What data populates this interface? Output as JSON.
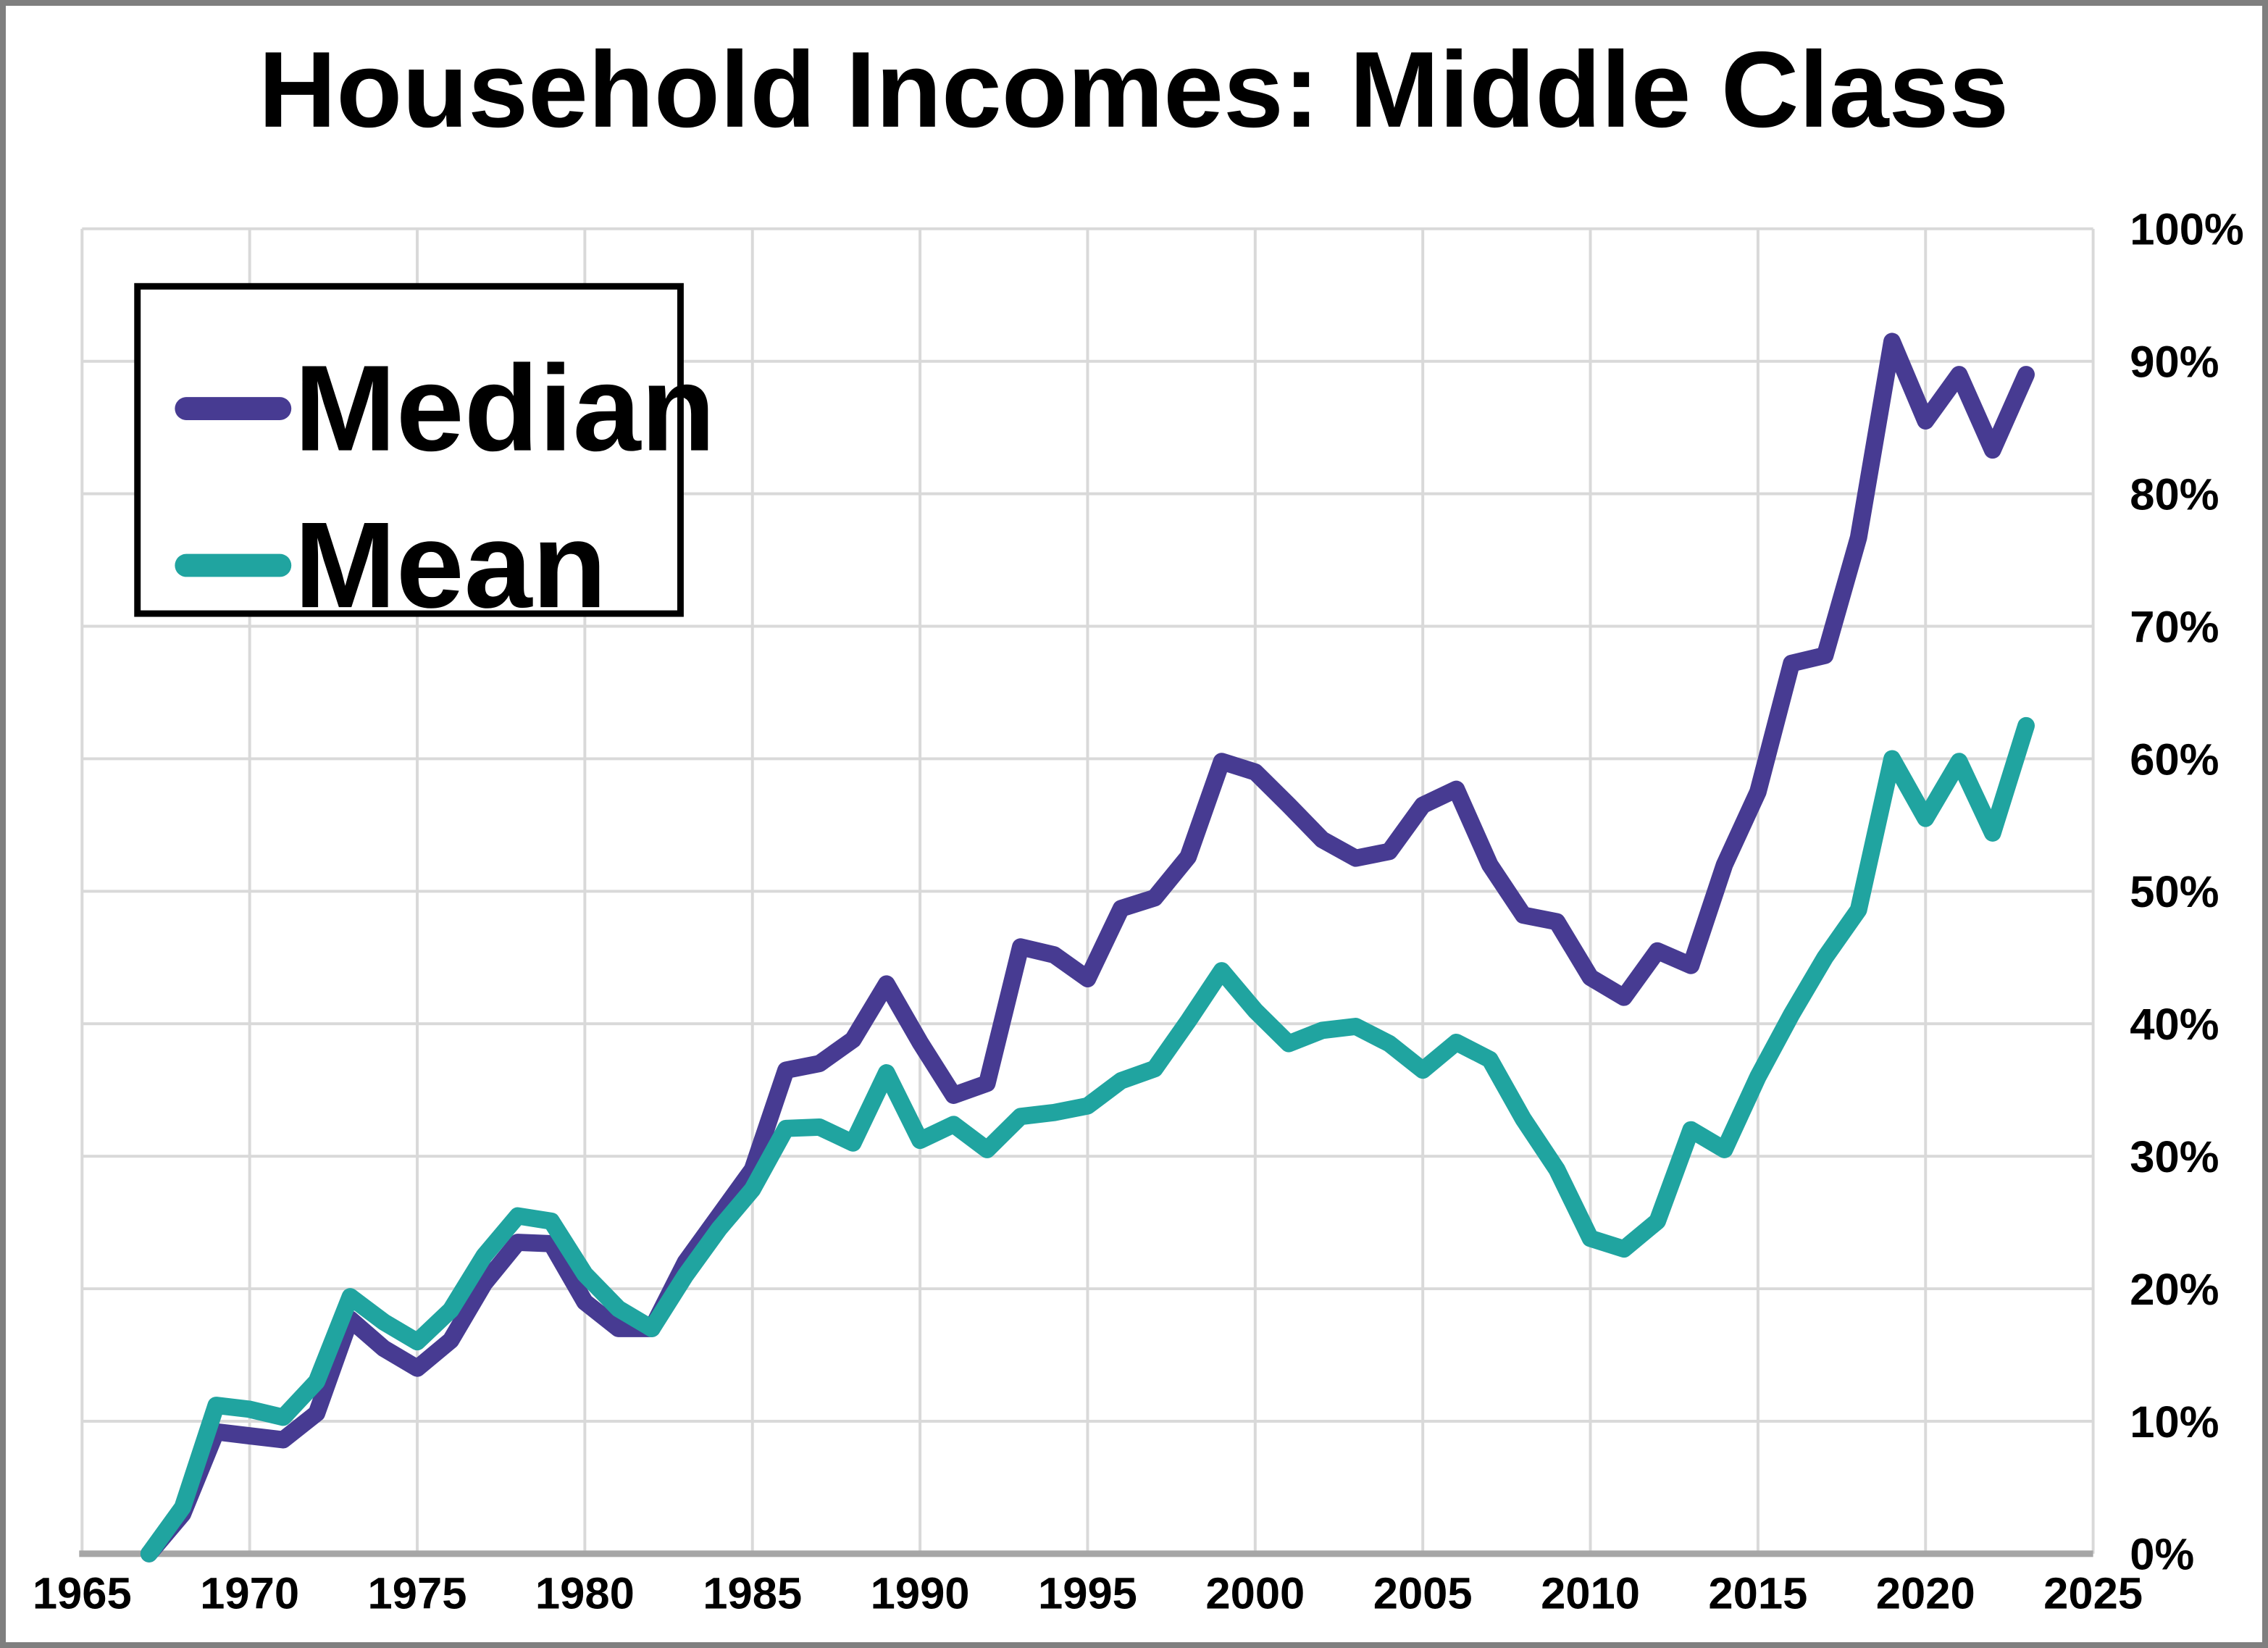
{
  "title": "Household Incomes: Middle Class",
  "legend": {
    "position": "top-left",
    "items": [
      {
        "label": "Median",
        "color": "#473B92"
      },
      {
        "label": "Mean",
        "color": "#20A4A0"
      }
    ]
  },
  "axes": {
    "x_tick_labels": [
      "1965",
      "1970",
      "1975",
      "1980",
      "1985",
      "1990",
      "1995",
      "2000",
      "2005",
      "2010",
      "2015",
      "2020",
      "2025"
    ],
    "y_tick_labels": [
      "0%",
      "10%",
      "20%",
      "30%",
      "40%",
      "50%",
      "60%",
      "70%",
      "80%",
      "90%",
      "100%"
    ]
  },
  "chart_data": {
    "type": "line",
    "title": "Household Incomes: Middle Class",
    "xlabel": "",
    "ylabel": "",
    "xlim": [
      1965,
      2025
    ],
    "ylim": [
      0,
      100
    ],
    "grid": true,
    "legend_position": "top-left",
    "x": [
      1967,
      1968,
      1969,
      1970,
      1971,
      1972,
      1973,
      1974,
      1975,
      1976,
      1977,
      1978,
      1979,
      1980,
      1981,
      1982,
      1983,
      1984,
      1985,
      1986,
      1987,
      1988,
      1989,
      1990,
      1991,
      1992,
      1993,
      1994,
      1995,
      1996,
      1997,
      1998,
      1999,
      2000,
      2001,
      2002,
      2003,
      2004,
      2005,
      2006,
      2007,
      2008,
      2009,
      2010,
      2011,
      2012,
      2013,
      2014,
      2015,
      2016,
      2017,
      2018,
      2019,
      2020,
      2021,
      2022,
      2023
    ],
    "series": [
      {
        "name": "Median",
        "color": "#473B92",
        "values": [
          0,
          3,
          9.2,
          8.9,
          8.6,
          10.6,
          17.7,
          15.5,
          14,
          16.1,
          20.4,
          23.5,
          23.4,
          19,
          17,
          17,
          22,
          25.5,
          29,
          36.5,
          37,
          38.8,
          43,
          38.6,
          34.6,
          35.5,
          45.8,
          45.2,
          43.4,
          48.7,
          49.5,
          52.6,
          59.8,
          59,
          56.5,
          53.9,
          52.5,
          53,
          56.5,
          57.7,
          52,
          48.2,
          47.7,
          43.5,
          42,
          45.5,
          44.4,
          52,
          57.5,
          67.2,
          67.8,
          76.7,
          91.5,
          85.5,
          89,
          83.3,
          89
        ]
      },
      {
        "name": "Mean",
        "color": "#20A4A0",
        "values": [
          0,
          3.5,
          11.2,
          10.9,
          10.3,
          13,
          19.4,
          17.5,
          16,
          18.4,
          22.5,
          25.5,
          25.1,
          21.1,
          18.5,
          17,
          21,
          24.5,
          27.5,
          32.1,
          32.2,
          31,
          36.3,
          31.2,
          32.4,
          30.5,
          33,
          33.3,
          33.8,
          35.7,
          36.6,
          40.2,
          44,
          41,
          38.5,
          39.5,
          39.8,
          38.5,
          36.5,
          38.6,
          37.3,
          32.8,
          29,
          23.8,
          23,
          25.1,
          32,
          30.5,
          36,
          40.7,
          45,
          48.6,
          60,
          55.5,
          59.8,
          54.4,
          62.5
        ]
      }
    ]
  },
  "style": {
    "gridline_color": "#D9D9D9",
    "axis_line_color": "#A6A6A6",
    "frame_border_color": "#7F7F7F",
    "background_color": "#FFFFFF",
    "line_width": 24
  }
}
